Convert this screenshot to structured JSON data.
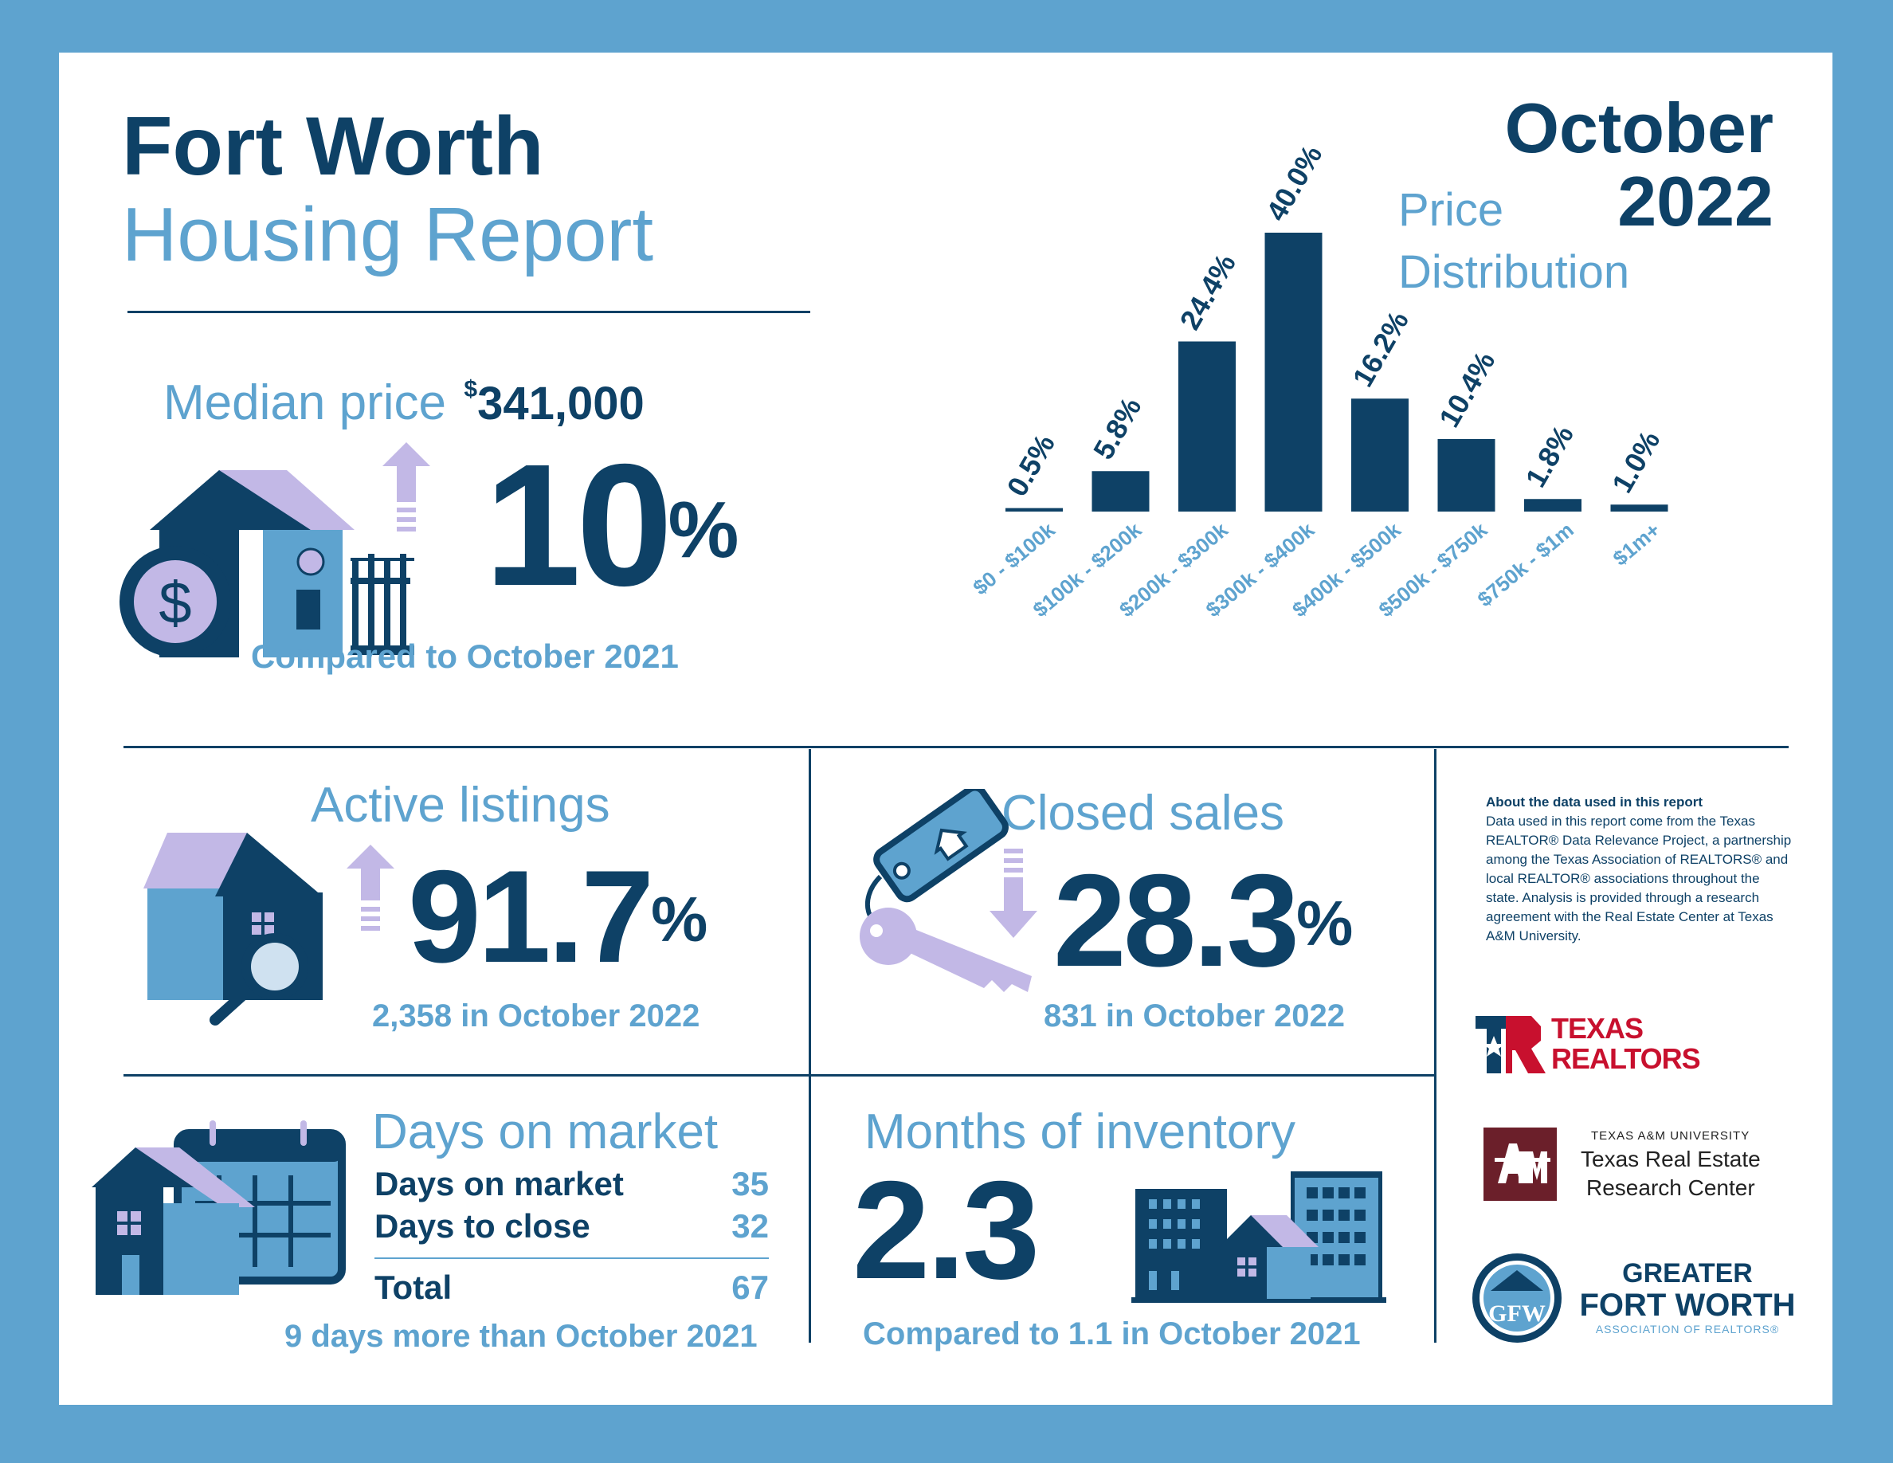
{
  "header": {
    "title_line1": "Fort Worth",
    "title_line2": "Housing Report",
    "month": "October",
    "year": "2022"
  },
  "median_price": {
    "label": "Median price",
    "currency_symbol": "$",
    "value": "341,000",
    "change": "10",
    "unit": "%",
    "direction": "up",
    "comparison": "Compared to October 2021"
  },
  "price_distribution": {
    "title_line1": "Price",
    "title_line2": "Distribution"
  },
  "chart_data": {
    "type": "bar",
    "title": "Price Distribution",
    "categories": [
      "$0 - $100k",
      "$100k - $200k",
      "$200k - $300k",
      "$300k - $400k",
      "$400k - $500k",
      "$500k - $750k",
      "$750k - $1m",
      "$1m+"
    ],
    "values": [
      0.5,
      5.8,
      24.4,
      40.0,
      16.2,
      10.4,
      1.8,
      1.0
    ],
    "value_labels": [
      "0.5%",
      "5.8%",
      "24.4%",
      "40.0%",
      "16.2%",
      "10.4%",
      "1.8%",
      "1.0%"
    ],
    "ylim": [
      0,
      40
    ],
    "grid": false,
    "legend": "none",
    "bar_color": "#0e4166",
    "label_color": "#5ea3cf"
  },
  "active_listings": {
    "label": "Active listings",
    "change": "91.7",
    "unit": "%",
    "direction": "up",
    "detail": "2,358 in October 2022"
  },
  "closed_sales": {
    "label": "Closed sales",
    "change": "28.3",
    "unit": "%",
    "direction": "down",
    "detail": "831 in October 2022"
  },
  "days_on_market": {
    "label": "Days on market",
    "rows": [
      {
        "label": "Days on market",
        "value": "35"
      },
      {
        "label": "Days to close",
        "value": "32"
      }
    ],
    "total_label": "Total",
    "total_value": "67",
    "comparison": "9 days more than October 2021"
  },
  "months_inventory": {
    "label": "Months of inventory",
    "value": "2.3",
    "comparison": "Compared to 1.1 in October 2021"
  },
  "about": {
    "heading": "About the data used in this report",
    "body": "Data used in this report come from the Texas REALTOR® Data Relevance Project, a partnership among the Texas Association of REALTORS® and local REALTOR® associations throughout the state. Analysis is provided through a research agreement with the Real Estate Center at Texas A&M University."
  },
  "logos": {
    "texas_realtors_line1": "TEXAS",
    "texas_realtors_line2": "REALTORS",
    "tamu_small": "TEXAS A&M UNIVERSITY",
    "tamu_line1": "Texas Real Estate",
    "tamu_line2": "Research Center",
    "gfw_line1": "GREATER",
    "gfw_line2": "FORT WORTH",
    "gfw_line3": "ASSOCIATION OF REALTORS®"
  },
  "colors": {
    "navy": "#0e4166",
    "light_blue": "#5ea3cf",
    "lavender": "#c2b8e6",
    "maroon": "#6b1f2a",
    "red": "#c8102e"
  }
}
